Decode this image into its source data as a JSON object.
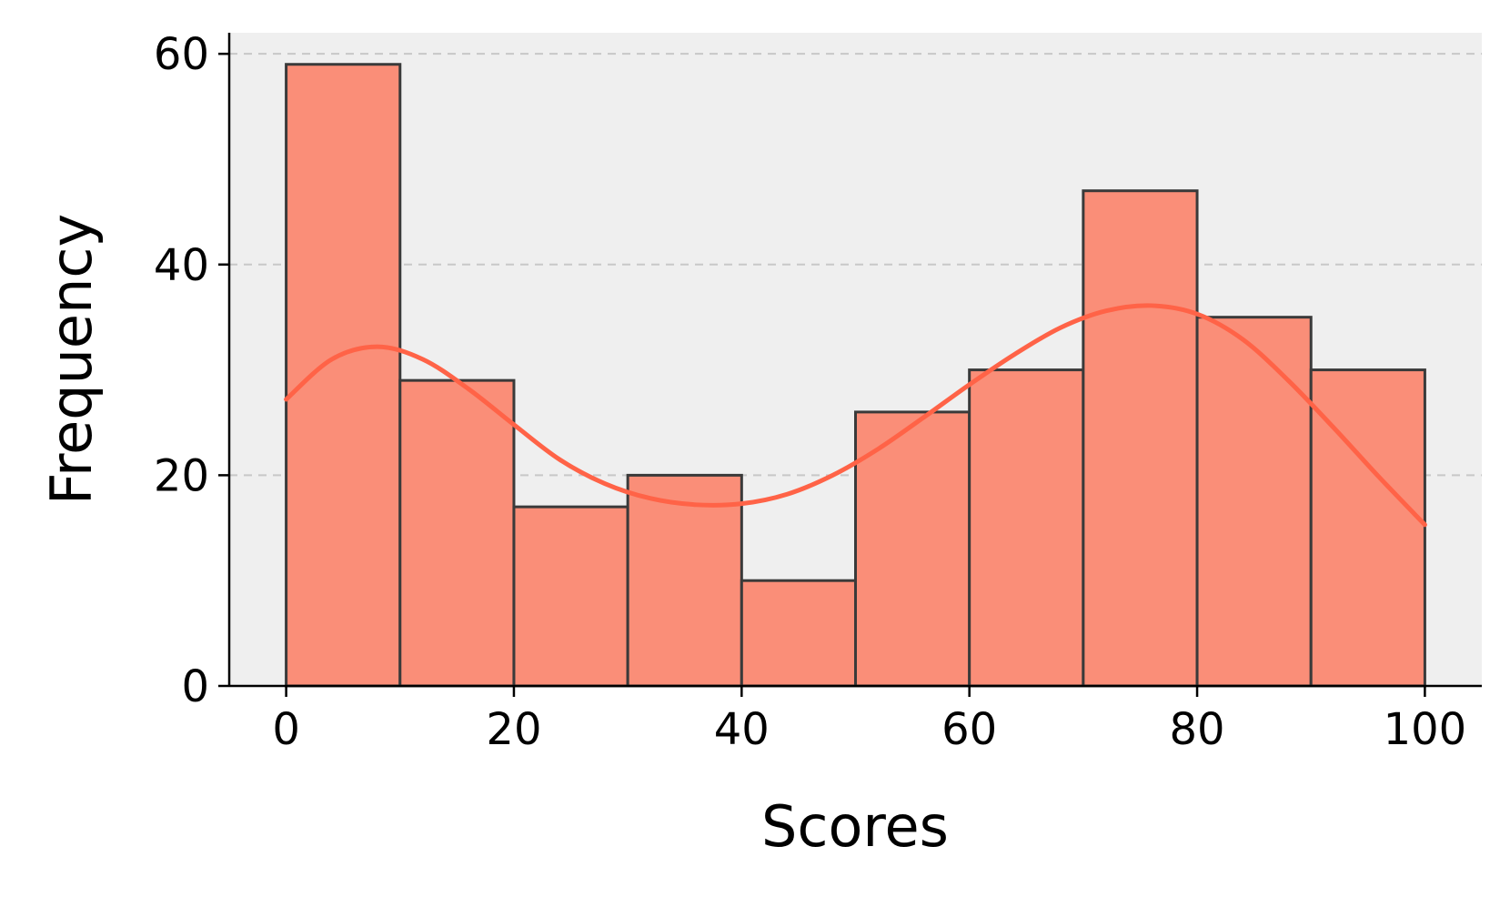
{
  "chart_data": {
    "type": "bar",
    "subtype": "histogram",
    "title": "",
    "xlabel": "Scores",
    "ylabel": "Frequency",
    "bin_edges": [
      0,
      10,
      20,
      30,
      40,
      50,
      60,
      70,
      80,
      90,
      100
    ],
    "values": [
      59,
      29,
      17,
      20,
      10,
      26,
      30,
      47,
      35,
      30
    ],
    "xlim": [
      -5,
      105
    ],
    "ylim": [
      0,
      62
    ],
    "xticks": [
      0,
      20,
      40,
      60,
      80,
      100
    ],
    "yticks": [
      0,
      20,
      40,
      60
    ],
    "grid": "y-dashed",
    "kde": {
      "x": [
        0,
        4,
        8,
        12,
        16,
        20,
        24,
        28,
        32,
        36,
        40,
        44,
        48,
        52,
        56,
        60,
        64,
        68,
        72,
        76,
        80,
        84,
        88,
        92,
        96,
        100
      ],
      "y": [
        27.2,
        31.0,
        32.2,
        31.0,
        28.2,
        24.8,
        21.5,
        19.2,
        17.8,
        17.2,
        17.3,
        18.2,
        20.0,
        22.5,
        25.5,
        28.6,
        31.5,
        34.0,
        35.6,
        36.1,
        35.3,
        32.9,
        29.0,
        24.5,
        19.8,
        15.3
      ]
    },
    "colors": {
      "bar_fill": "#fa8e78",
      "bar_edge": "#3a3a3a",
      "kde_line": "#ff6347",
      "plot_background": "#efefef",
      "grid": "#c8c8c8"
    }
  }
}
